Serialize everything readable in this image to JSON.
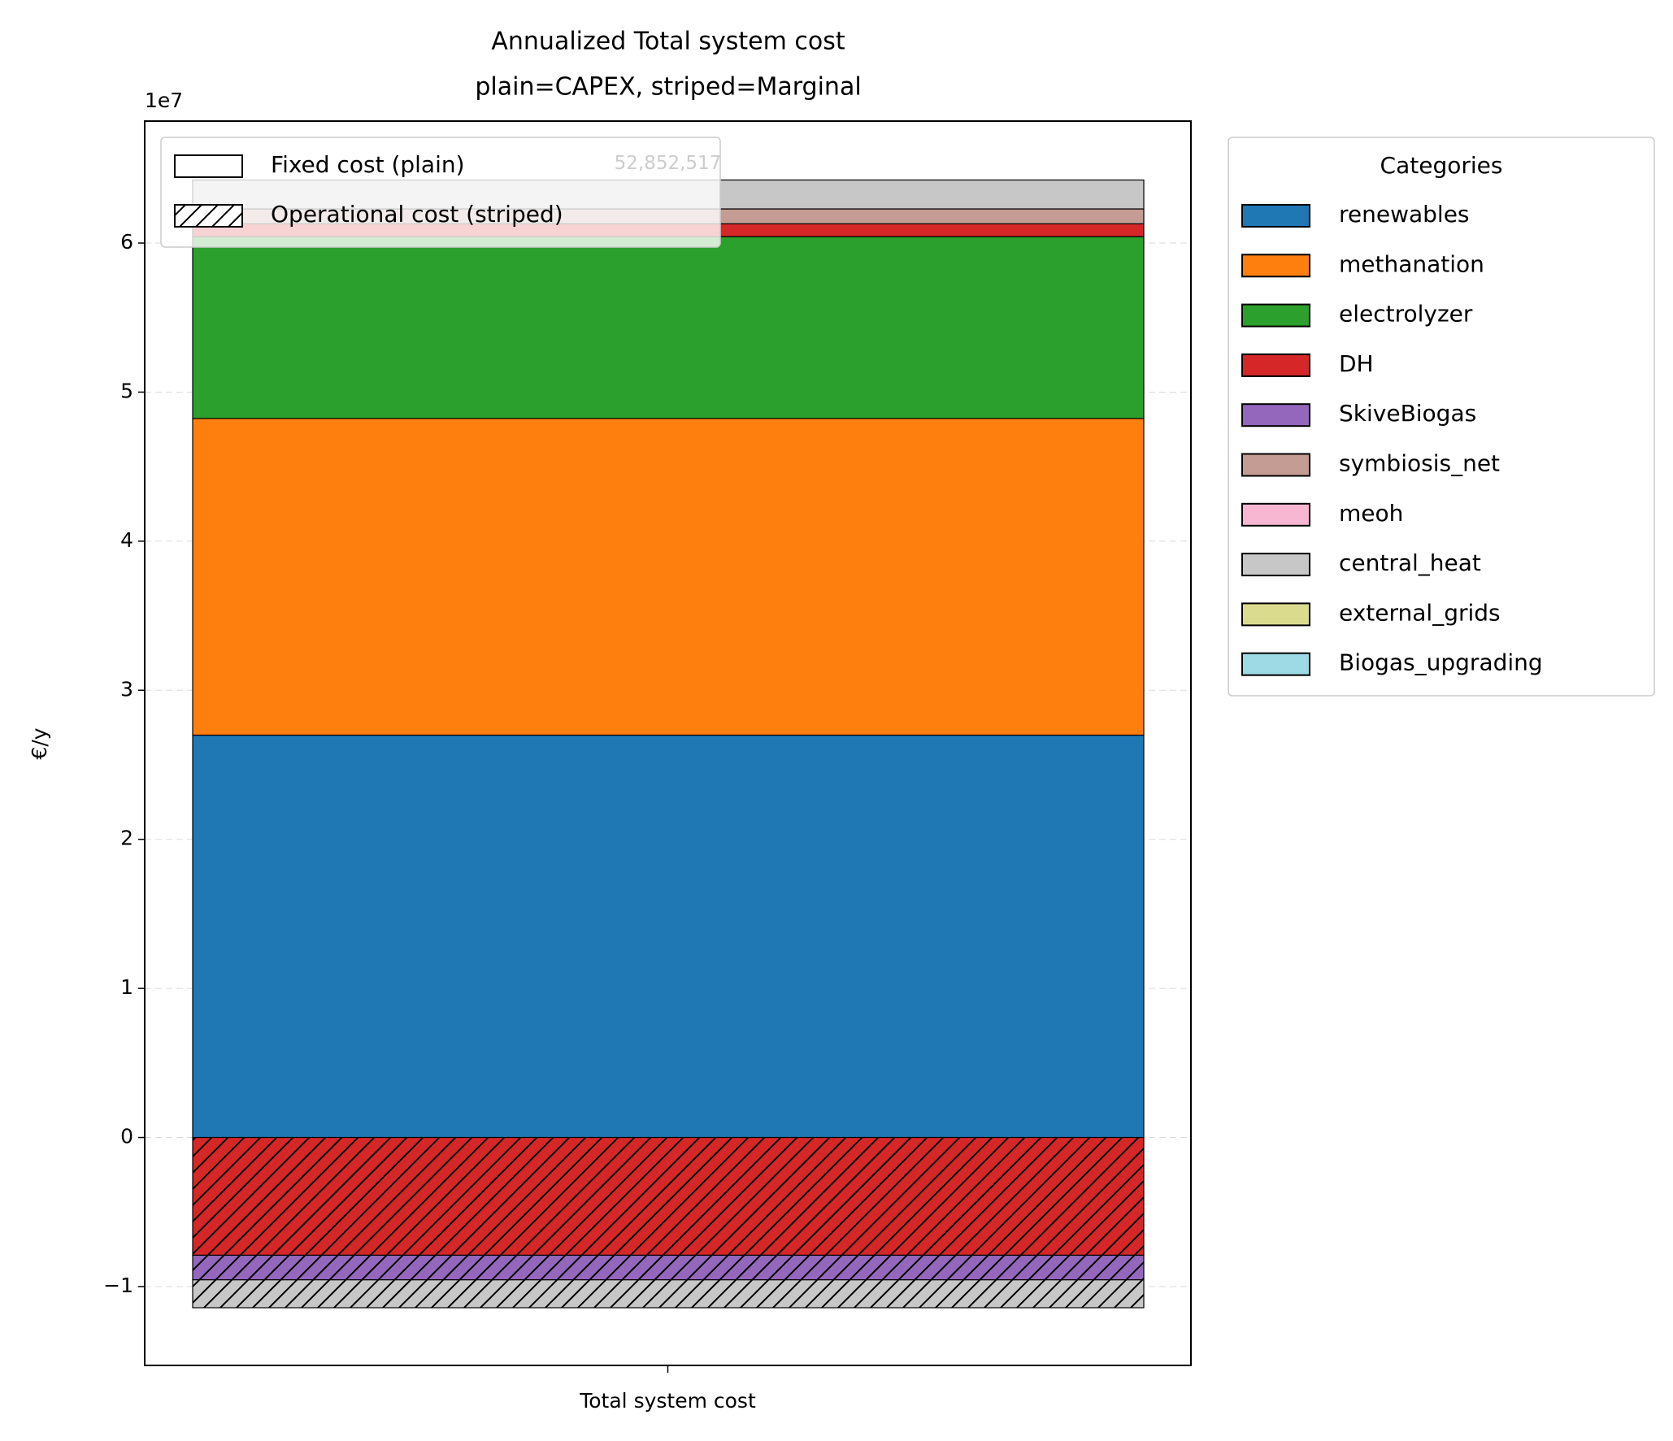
{
  "chart_data": {
    "type": "stacked_bar",
    "title": "Annualized Total system cost",
    "subtitle": "plain=CAPEX, striped=Marginal",
    "y_label": "€/y",
    "y_offset_label": "1e7",
    "categories": [
      "Total system cost"
    ],
    "series": [
      {
        "name": "renewables",
        "color": "#1f77b4",
        "fixed": [
          26990000
        ],
        "operational": [
          null
        ]
      },
      {
        "name": "methanation",
        "color": "#ff7f0e",
        "fixed": [
          21240000
        ],
        "operational": [
          null
        ]
      },
      {
        "name": "electrolyzer",
        "color": "#2ca02c",
        "fixed": [
          12200000
        ],
        "operational": [
          null
        ]
      },
      {
        "name": "DH",
        "color": "#d62728",
        "fixed": [
          860000
        ],
        "operational": [
          -7900000
        ]
      },
      {
        "name": "SkiveBiogas",
        "color": "#9467bd",
        "fixed": [
          null
        ],
        "operational": [
          -1650000
        ]
      },
      {
        "name": "symbiosis_net",
        "color": "#c49c94",
        "fixed": [
          1000000
        ],
        "operational": [
          null
        ]
      },
      {
        "name": "meoh",
        "color": "#f7b6d2",
        "fixed": [
          null
        ],
        "operational": [
          null
        ]
      },
      {
        "name": "central_heat",
        "color": "#c7c7c7",
        "fixed": [
          1940000
        ],
        "operational": [
          -1870000
        ]
      },
      {
        "name": "external_grids",
        "color": "#dbdb8d",
        "fixed": [
          null
        ],
        "operational": [
          null
        ]
      },
      {
        "name": "Biogas_upgrading",
        "color": "#9edae5",
        "fixed": [
          null
        ],
        "operational": [
          null
        ]
      }
    ],
    "totals": [
      52852517
    ],
    "value_labels": [
      "52,852,517"
    ],
    "hatch_legend": [
      "Fixed cost (plain)",
      "Operational cost (striped)"
    ],
    "legend_title": "Categories",
    "legend": "outside right",
    "ylim": [
      -15290000,
      68180000
    ],
    "yticks": [
      {
        "value": -10000000,
        "label": "−1"
      },
      {
        "value": 0,
        "label": "0"
      },
      {
        "value": 10000000,
        "label": "1"
      },
      {
        "value": 20000000,
        "label": "2"
      },
      {
        "value": 30000000,
        "label": "3"
      },
      {
        "value": 40000000,
        "label": "4"
      },
      {
        "value": 50000000,
        "label": "5"
      },
      {
        "value": 60000000,
        "label": "6"
      }
    ],
    "grid": true
  }
}
